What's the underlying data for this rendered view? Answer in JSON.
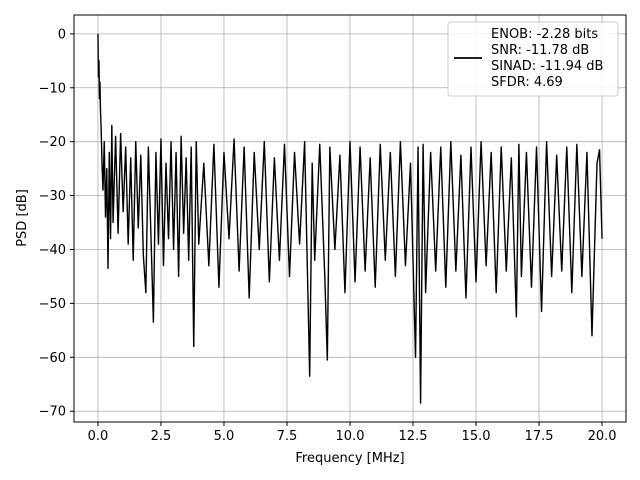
{
  "chart_data": {
    "type": "line",
    "title": "",
    "xlabel": "Frequency [MHz]",
    "ylabel": "PSD [dB]",
    "xlim": [
      -0.95,
      20.95
    ],
    "ylim": [
      -72.0,
      3.5
    ],
    "x_ticks": [
      0.0,
      2.5,
      5.0,
      7.5,
      10.0,
      12.5,
      15.0,
      17.5,
      20.0
    ],
    "x_tick_labels": [
      "0.0",
      "2.5",
      "5.0",
      "7.5",
      "10.0",
      "12.5",
      "15.0",
      "17.5",
      "20.0"
    ],
    "y_ticks": [
      0,
      -10,
      -20,
      -30,
      -40,
      -50,
      -60,
      -70
    ],
    "y_tick_labels": [
      "0",
      "−10",
      "−20",
      "−30",
      "−40",
      "−50",
      "−60",
      "−70"
    ],
    "grid": true,
    "legend_position": "top-right",
    "line_color": "#000000",
    "series": [
      {
        "name": "ENOB: -2.28 bits",
        "legend_lines": [
          "ENOB: -2.28 bits",
          "SNR: -11.78 dB",
          "SINAD: -11.94 dB",
          "SFDR: 4.69"
        ],
        "x": [
          0.0,
          0.02,
          0.04,
          0.06,
          0.08,
          0.1,
          0.13,
          0.16,
          0.2,
          0.25,
          0.3,
          0.35,
          0.4,
          0.45,
          0.5,
          0.55,
          0.6,
          0.7,
          0.8,
          0.9,
          1.0,
          1.1,
          1.2,
          1.3,
          1.4,
          1.5,
          1.6,
          1.7,
          1.8,
          1.9,
          2.0,
          2.1,
          2.2,
          2.3,
          2.4,
          2.5,
          2.6,
          2.7,
          2.8,
          2.9,
          3.0,
          3.1,
          3.2,
          3.3,
          3.4,
          3.5,
          3.6,
          3.7,
          3.8,
          3.9,
          4.0,
          4.2,
          4.4,
          4.6,
          4.8,
          5.0,
          5.2,
          5.4,
          5.6,
          5.8,
          6.0,
          6.2,
          6.4,
          6.6,
          6.8,
          7.0,
          7.2,
          7.4,
          7.6,
          7.8,
          8.0,
          8.2,
          8.4,
          8.5,
          8.6,
          8.8,
          9.0,
          9.1,
          9.2,
          9.4,
          9.6,
          9.8,
          10.0,
          10.2,
          10.4,
          10.6,
          10.8,
          11.0,
          11.2,
          11.4,
          11.6,
          11.8,
          12.0,
          12.2,
          12.4,
          12.6,
          12.7,
          12.8,
          12.9,
          13.0,
          13.2,
          13.4,
          13.6,
          13.8,
          14.0,
          14.2,
          14.4,
          14.6,
          14.8,
          15.0,
          15.2,
          15.4,
          15.6,
          15.8,
          16.0,
          16.2,
          16.4,
          16.6,
          16.7,
          16.8,
          17.0,
          17.2,
          17.4,
          17.6,
          17.8,
          18.0,
          18.2,
          18.4,
          18.6,
          18.8,
          19.0,
          19.2,
          19.4,
          19.6,
          19.8,
          19.9,
          20.0
        ],
        "y": [
          0.0,
          -8.0,
          -5.0,
          -12.0,
          -9.0,
          -14.0,
          -18.0,
          -24.0,
          -29.0,
          -20.0,
          -34.0,
          -25.0,
          -43.5,
          -22.0,
          -38.0,
          -17.0,
          -35.0,
          -19.0,
          -37.0,
          -18.5,
          -33.0,
          -21.0,
          -39.0,
          -23.0,
          -42.0,
          -20.0,
          -36.0,
          -22.5,
          -41.0,
          -48.0,
          -21.0,
          -37.0,
          -53.5,
          -22.0,
          -39.0,
          -19.5,
          -43.0,
          -24.0,
          -38.0,
          -20.0,
          -40.0,
          -22.0,
          -45.0,
          -19.0,
          -37.0,
          -23.0,
          -42.0,
          -21.0,
          -58.0,
          -20.0,
          -39.0,
          -24.0,
          -43.0,
          -20.5,
          -47.0,
          -22.0,
          -38.0,
          -19.5,
          -44.0,
          -21.0,
          -49.0,
          -22.0,
          -40.0,
          -20.0,
          -46.0,
          -23.0,
          -42.0,
          -20.5,
          -45.0,
          -22.0,
          -39.0,
          -20.0,
          -63.5,
          -24.0,
          -42.0,
          -20.5,
          -45.0,
          -60.5,
          -21.0,
          -40.0,
          -22.5,
          -48.0,
          -20.0,
          -46.0,
          -21.0,
          -44.0,
          -23.0,
          -47.0,
          -20.5,
          -42.0,
          -22.0,
          -45.0,
          -20.0,
          -43.0,
          -24.0,
          -60.0,
          -21.0,
          -68.5,
          -20.5,
          -48.0,
          -22.0,
          -44.0,
          -21.0,
          -47.0,
          -20.0,
          -44.0,
          -22.5,
          -49.0,
          -21.0,
          -46.0,
          -20.0,
          -43.0,
          -22.0,
          -48.0,
          -21.0,
          -44.0,
          -23.0,
          -52.5,
          -20.5,
          -45.0,
          -22.0,
          -47.0,
          -21.0,
          -51.5,
          -20.0,
          -45.0,
          -22.5,
          -44.0,
          -21.0,
          -48.0,
          -20.5,
          -45.0,
          -22.0,
          -56.0,
          -24.0,
          -21.5,
          -38.0
        ]
      }
    ]
  }
}
